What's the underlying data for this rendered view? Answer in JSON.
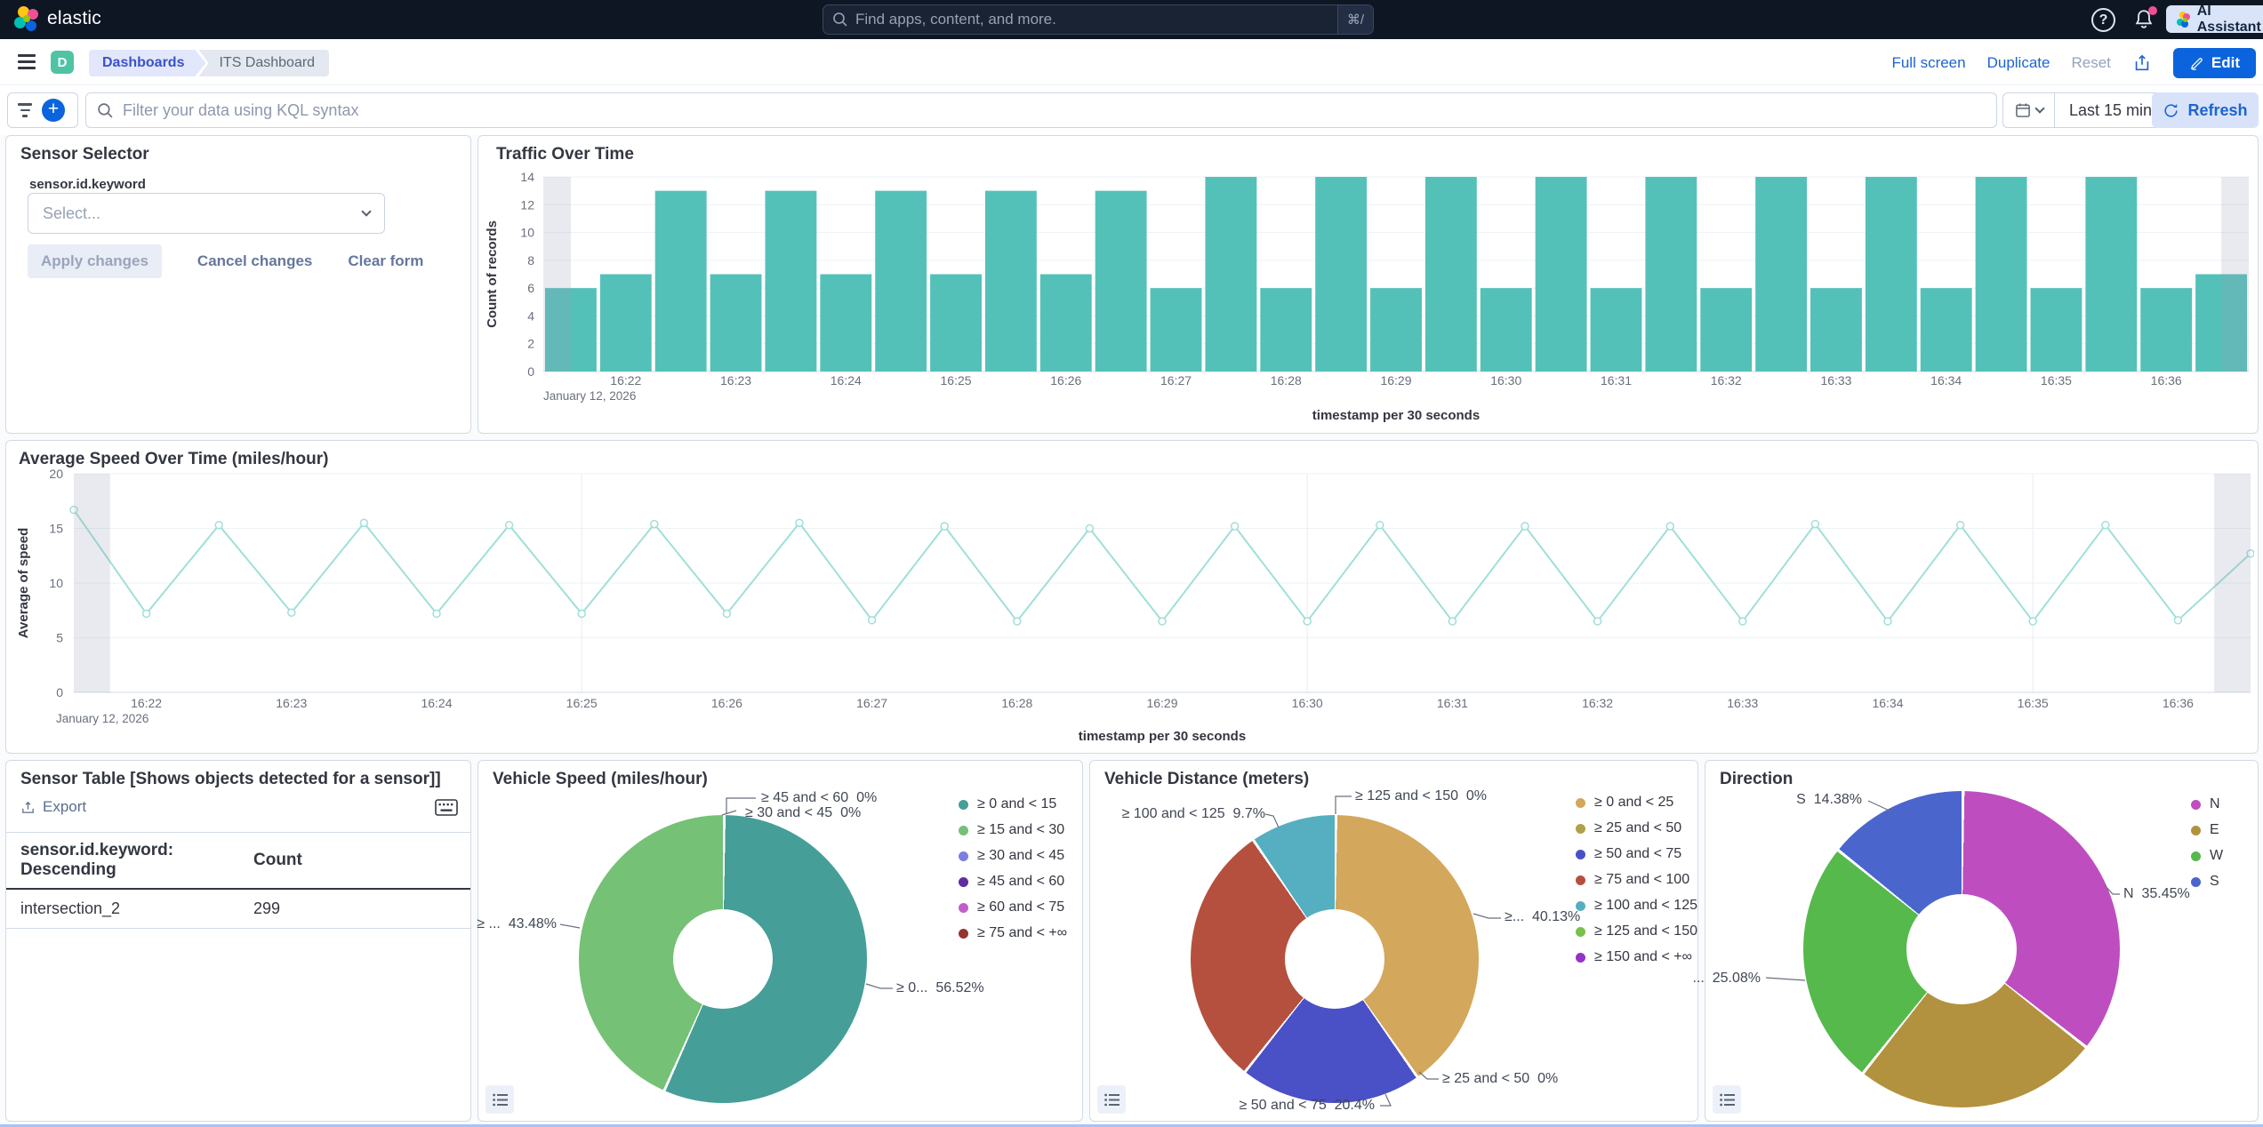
{
  "header": {
    "brand": "elastic",
    "search_placeholder": "Find apps, content, and more.",
    "search_shortcut": "⌘/",
    "ai_assistant_label": "AI Assistant"
  },
  "nav": {
    "space_initial": "D",
    "breadcrumbs": [
      "Dashboards",
      "ITS Dashboard"
    ],
    "full_screen": "Full screen",
    "duplicate": "Duplicate",
    "reset": "Reset",
    "edit_label": "Edit"
  },
  "filter_bar": {
    "kql_placeholder": "Filter your data using KQL syntax",
    "time_range": "Last 15 minutes",
    "refresh_label": "Refresh"
  },
  "panels": {
    "sensor_selector": {
      "title": "Sensor Selector",
      "field_label": "sensor.id.keyword",
      "select_placeholder": "Select...",
      "apply_label": "Apply changes",
      "cancel_label": "Cancel changes",
      "clear_label": "Clear form"
    },
    "traffic": {
      "title": "Traffic Over Time"
    },
    "speed": {
      "title": "Average Speed Over Time (miles/hour)"
    },
    "sensor_table": {
      "title": "Sensor Table [Shows objects detected for a sensor]]",
      "export_label": "Export",
      "columns": [
        "sensor.id.keyword: Descending",
        "Count"
      ],
      "rows": [
        [
          "intersection_2",
          "299"
        ]
      ]
    },
    "vehicle_speed": {
      "title": "Vehicle Speed (miles/hour)",
      "callouts": [
        "≥ 45 and < 60  0%",
        "≥ 30 and < 45  0%",
        "≥ ...  43.48%",
        "≥ 0...  56.52%"
      ]
    },
    "vehicle_distance": {
      "title": "Vehicle Distance (meters)",
      "callouts": [
        "≥ 125 and < 150  0%",
        "≥ 100 and < 125  9.7%",
        "≥...  40.13%",
        "≥ 25 and < 50  0%",
        "≥ 50 and < 75  20.4%"
      ]
    },
    "direction": {
      "title": "Direction",
      "callouts": [
        "S  14.38%",
        "N  35.45%",
        "...  25.08%"
      ]
    }
  },
  "chart_data": [
    {
      "type": "bar",
      "title": "Traffic Over Time",
      "xlabel": "timestamp per 30 seconds",
      "ylabel": "Count of records",
      "ylim": [
        0,
        14
      ],
      "yticks": [
        0,
        2,
        4,
        6,
        8,
        10,
        12,
        14
      ],
      "x_tick_labels": [
        "16:22",
        "16:23",
        "16:24",
        "16:25",
        "16:26",
        "16:27",
        "16:28",
        "16:29",
        "16:30",
        "16:31",
        "16:32",
        "16:33",
        "16:34",
        "16:35",
        "16:36"
      ],
      "date_label": "January 12, 2026",
      "values": [
        6,
        7,
        13,
        7,
        13,
        7,
        13,
        7,
        13,
        7,
        13,
        6,
        14,
        6,
        14,
        6,
        14,
        6,
        14,
        6,
        14,
        6,
        14,
        6,
        14,
        6,
        14,
        6,
        14,
        6,
        7
      ],
      "bar_color": "#54C1B9",
      "grid": true,
      "partial_bucket_shading": "first and last half-bucket shaded gray"
    },
    {
      "type": "line",
      "title": "Average Speed Over Time (miles/hour)",
      "xlabel": "timestamp per 30 seconds",
      "ylabel": "Average of speed",
      "ylim": [
        0,
        20
      ],
      "yticks": [
        0,
        5,
        10,
        15,
        20
      ],
      "x_tick_labels": [
        "16:22",
        "16:23",
        "16:24",
        "16:25",
        "16:26",
        "16:27",
        "16:28",
        "16:29",
        "16:30",
        "16:31",
        "16:32",
        "16:33",
        "16:34",
        "16:35",
        "16:36"
      ],
      "date_label": "January 12, 2026",
      "values": [
        16.7,
        7.2,
        15.3,
        7.3,
        15.5,
        7.2,
        15.3,
        7.2,
        15.4,
        7.2,
        15.5,
        6.6,
        15.2,
        6.5,
        15.0,
        6.5,
        15.2,
        6.5,
        15.3,
        6.5,
        15.2,
        6.5,
        15.2,
        6.5,
        15.4,
        6.5,
        15.3,
        6.5,
        15.3,
        6.6,
        12.7
      ],
      "line_color": "#A0DFD8",
      "vertical_gridline_indices": [
        7,
        17,
        27
      ],
      "grid": true
    },
    {
      "type": "pie",
      "title": "Vehicle Speed (miles/hour)",
      "legend_position": "right",
      "slices": [
        {
          "label": "≥ 0 and < 15",
          "value": 56.52,
          "color": "#469E98"
        },
        {
          "label": "≥ 15 and < 30",
          "value": 43.48,
          "color": "#75C176"
        },
        {
          "label": "≥ 30 and < 45",
          "value": 0,
          "color": "#7B7FE3"
        },
        {
          "label": "≥ 45 and < 60",
          "value": 0,
          "color": "#5F2DA0"
        },
        {
          "label": "≥ 60 and < 75",
          "value": 0,
          "color": "#C15FC9"
        },
        {
          "label": "≥ 75 and < +∞",
          "value": 0,
          "color": "#96352F"
        }
      ]
    },
    {
      "type": "pie",
      "title": "Vehicle Distance (meters)",
      "legend_position": "right",
      "slices": [
        {
          "label": "≥ 0 and < 25",
          "value": 40.13,
          "color": "#D3A75C"
        },
        {
          "label": "≥ 25 and < 50",
          "value": 0,
          "color": "#B0A049"
        },
        {
          "label": "≥ 50 and < 75",
          "value": 20.4,
          "color": "#4A50C6"
        },
        {
          "label": "≥ 75 and < 100",
          "value": 29.77,
          "color": "#B5503F"
        },
        {
          "label": "≥ 100 and < 125",
          "value": 9.7,
          "color": "#55AFC0"
        },
        {
          "label": "≥ 125 and < 150",
          "value": 0,
          "color": "#76C14A"
        },
        {
          "label": "≥ 150 and < +∞",
          "value": 0,
          "color": "#9433C8"
        }
      ]
    },
    {
      "type": "pie",
      "title": "Direction",
      "legend_position": "right",
      "slices": [
        {
          "label": "N",
          "value": 35.45,
          "color": "#BE4EC0"
        },
        {
          "label": "E",
          "value": 25.09,
          "color": "#B3923F"
        },
        {
          "label": "W",
          "value": 25.08,
          "color": "#55B94C"
        },
        {
          "label": "S",
          "value": 14.38,
          "color": "#4A66CD"
        }
      ]
    }
  ]
}
